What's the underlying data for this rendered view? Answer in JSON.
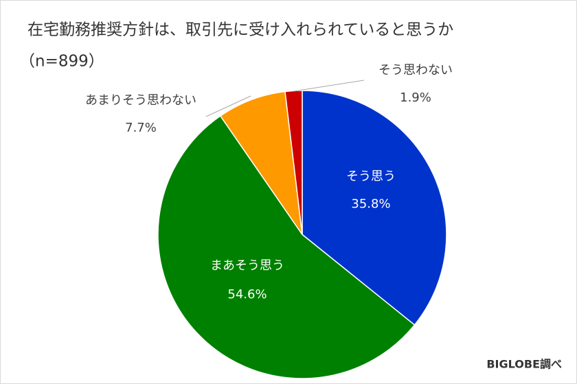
{
  "chart_data": {
    "type": "pie",
    "title": "在宅勤務推奨方針は、取引先に受け入れられていると思うか",
    "subtitle": "（n=899）",
    "source": "BIGLOBE調べ",
    "categories": [
      "そう思う",
      "まあそう思う",
      "あまりそう思わない",
      "そう思わない"
    ],
    "values": [
      35.8,
      54.6,
      7.7,
      1.9
    ],
    "value_labels": [
      "35.8%",
      "54.6%",
      "7.7%",
      "1.9%"
    ],
    "colors": [
      "#0033cc",
      "#008000",
      "#ff9900",
      "#cc0000"
    ]
  }
}
